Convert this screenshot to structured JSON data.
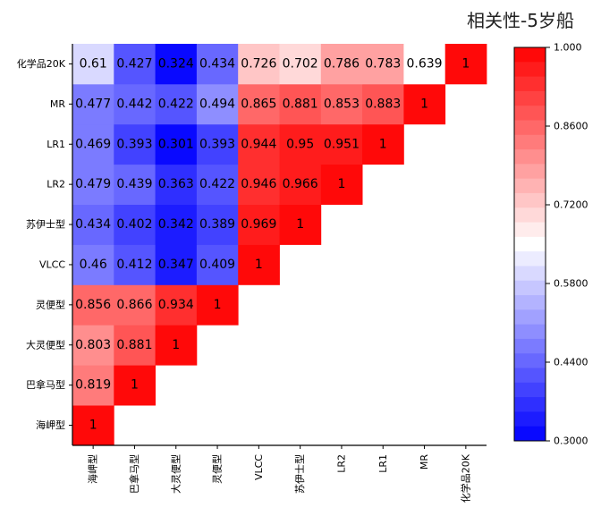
{
  "chart_data": {
    "type": "heatmap",
    "title": "相关性-5岁船",
    "variables": [
      "海岬型",
      "巴拿马型",
      "大灵便型",
      "灵便型",
      "VLCC",
      "苏伊士型",
      "LR2",
      "LR1",
      "MR",
      "化学品20K"
    ],
    "matrix": [
      [
        1
      ],
      [
        0.819,
        1
      ],
      [
        0.803,
        0.881,
        1
      ],
      [
        0.856,
        0.866,
        0.934,
        1
      ],
      [
        0.46,
        0.412,
        0.347,
        0.409,
        1
      ],
      [
        0.434,
        0.402,
        0.342,
        0.389,
        0.969,
        1
      ],
      [
        0.479,
        0.439,
        0.363,
        0.422,
        0.946,
        0.966,
        1
      ],
      [
        0.469,
        0.393,
        0.301,
        0.393,
        0.944,
        0.95,
        0.951,
        1
      ],
      [
        0.477,
        0.442,
        0.422,
        0.494,
        0.865,
        0.881,
        0.853,
        0.883,
        1
      ],
      [
        0.61,
        0.427,
        0.324,
        0.434,
        0.726,
        0.702,
        0.786,
        0.783,
        0.639,
        1
      ]
    ],
    "matrix_labels": [
      [
        "1"
      ],
      [
        "0.819",
        "1"
      ],
      [
        "0.803",
        "0.881",
        "1"
      ],
      [
        "0.856",
        "0.866",
        "0.934",
        "1"
      ],
      [
        "0.46",
        "0.412",
        "0.347",
        "0.409",
        "1"
      ],
      [
        "0.434",
        "0.402",
        "0.342",
        "0.389",
        "0.969",
        "1"
      ],
      [
        "0.479",
        "0.439",
        "0.363",
        "0.422",
        "0.946",
        "0.966",
        "1"
      ],
      [
        "0.469",
        "0.393",
        "0.301",
        "0.393",
        "0.944",
        "0.95",
        "0.951",
        "1"
      ],
      [
        "0.477",
        "0.442",
        "0.422",
        "0.494",
        "0.865",
        "0.881",
        "0.853",
        "0.883",
        "1"
      ],
      [
        "0.61",
        "0.427",
        "0.324",
        "0.434",
        "0.726",
        "0.702",
        "0.786",
        "0.783",
        "0.639",
        "1"
      ]
    ],
    "colorbar": {
      "min": 0.3,
      "max": 1.0,
      "ticks": [
        1.0,
        0.86,
        0.72,
        0.58,
        0.44,
        0.3
      ],
      "tick_labels": [
        "1.000",
        "0.8600",
        "0.7200",
        "0.5800",
        "0.4400",
        "0.3000"
      ],
      "colors": {
        "low": "#0000ff",
        "mid": "#ffffff",
        "high": "#ff0000"
      },
      "steps": 27
    }
  }
}
